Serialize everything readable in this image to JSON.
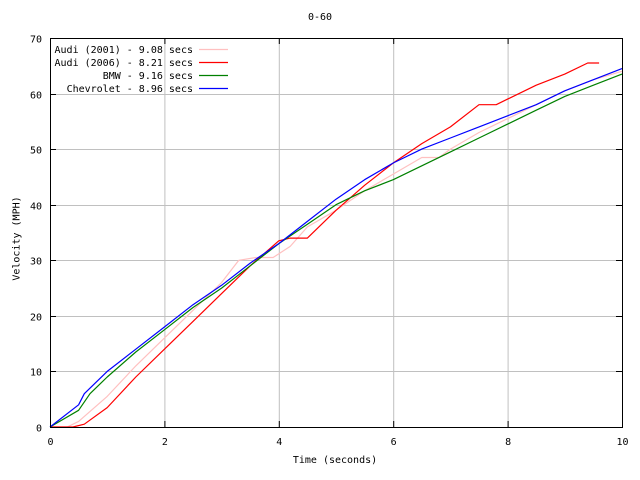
{
  "chart_data": {
    "type": "line",
    "title": "0-60",
    "xlabel": "Time (seconds)",
    "ylabel": "Velocity (MPH)",
    "xlim": [
      0,
      10
    ],
    "ylim": [
      0,
      70
    ],
    "xticks": [
      0,
      2,
      4,
      6,
      8,
      10
    ],
    "yticks": [
      0,
      10,
      20,
      30,
      40,
      50,
      60,
      70
    ],
    "grid": true,
    "legend_position": "upper-left",
    "series": [
      {
        "name": "Audi (2001) - 9.08 secs",
        "color": "#ffc0c0",
        "x": [
          0,
          0.3,
          0.5,
          1,
          1.5,
          2,
          2.5,
          3,
          3.3,
          3.6,
          3.9,
          4.2,
          4.5,
          5,
          5.5,
          6,
          6.5,
          6.8,
          7,
          7.5,
          8,
          8.5,
          9,
          9.5,
          10
        ],
        "y": [
          0,
          0,
          1,
          5.5,
          11,
          16,
          21,
          26,
          30,
          30.5,
          30.5,
          32.5,
          36,
          39,
          42.5,
          45.5,
          48.5,
          48.5,
          50,
          53,
          55.5,
          58,
          60.5,
          62.5,
          64
        ]
      },
      {
        "name": "Audi (2006) - 8.21 secs",
        "color": "#ff0000",
        "x": [
          0,
          0.4,
          0.6,
          1,
          1.5,
          2,
          2.5,
          3,
          3.5,
          4,
          4.2,
          4.5,
          5,
          5.5,
          6,
          6.5,
          7,
          7.5,
          7.8,
          8,
          8.5,
          9,
          9.4,
          9.6
        ],
        "y": [
          0,
          0,
          0.5,
          3.5,
          9,
          14,
          19,
          24,
          29,
          33.5,
          34,
          34,
          39,
          43.5,
          47.5,
          51,
          54,
          58,
          58,
          59,
          61.5,
          63.5,
          65.5,
          65.5
        ]
      },
      {
        "name": "BMW - 9.16 secs",
        "color": "#008000",
        "x": [
          0,
          0.5,
          0.7,
          1,
          1.5,
          2,
          2.5,
          3,
          3.5,
          4,
          4.5,
          5,
          5.5,
          6,
          6.5,
          7,
          7.5,
          8,
          8.5,
          9,
          9.5,
          10
        ],
        "y": [
          0,
          3,
          6,
          9,
          13.5,
          17.5,
          21.5,
          25,
          29,
          33,
          36.5,
          40,
          42.5,
          44.5,
          47,
          49.5,
          52,
          54.5,
          57,
          59.5,
          61.5,
          63.5
        ]
      },
      {
        "name": "Chevrolet - 8.96 secs",
        "color": "#0000ff",
        "x": [
          0,
          0.5,
          0.6,
          1,
          1.5,
          2,
          2.5,
          3,
          3.5,
          4,
          4.5,
          5,
          5.5,
          6,
          6.5,
          7,
          7.5,
          8,
          8.5,
          9,
          9.5,
          10
        ],
        "y": [
          0,
          4,
          6,
          10,
          14,
          18,
          22,
          25.5,
          29.5,
          33,
          37,
          41,
          44.5,
          47.5,
          50,
          52,
          54,
          56,
          58,
          60.5,
          62.5,
          64.5
        ]
      }
    ]
  }
}
